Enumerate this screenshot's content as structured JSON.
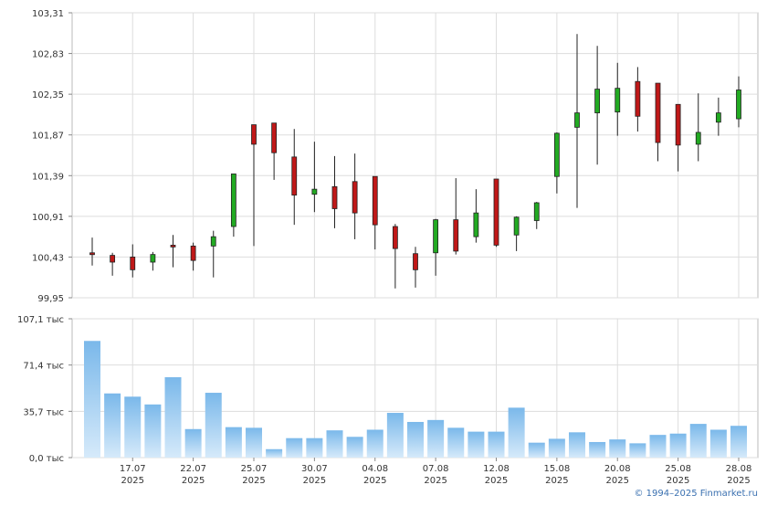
{
  "chart_data": [
    {
      "type": "candlestick",
      "x_tick_labels": [
        {
          "day": "17.07",
          "year": "2025"
        },
        {
          "day": "22.07",
          "year": "2025"
        },
        {
          "day": "25.07",
          "year": "2025"
        },
        {
          "day": "30.07",
          "year": "2025"
        },
        {
          "day": "04.08",
          "year": "2025"
        },
        {
          "day": "07.08",
          "year": "2025"
        },
        {
          "day": "12.08",
          "year": "2025"
        },
        {
          "day": "15.08",
          "year": "2025"
        },
        {
          "day": "20.08",
          "year": "2025"
        },
        {
          "day": "25.08",
          "year": "2025"
        },
        {
          "day": "28.08",
          "year": "2025"
        }
      ],
      "y_ticks": [
        "99,95",
        "100,43",
        "100,91",
        "101,39",
        "101,87",
        "102,35",
        "102,83",
        "103,31"
      ],
      "ylim": [
        99.95,
        103.31
      ],
      "grid": true,
      "candles": [
        {
          "o": 100.48,
          "h": 100.66,
          "l": 100.33,
          "c": 100.46
        },
        {
          "o": 100.45,
          "h": 100.48,
          "l": 100.21,
          "c": 100.37
        },
        {
          "o": 100.43,
          "h": 100.58,
          "l": 100.19,
          "c": 100.28
        },
        {
          "o": 100.37,
          "h": 100.49,
          "l": 100.27,
          "c": 100.46
        },
        {
          "o": 100.57,
          "h": 100.69,
          "l": 100.31,
          "c": 100.55
        },
        {
          "o": 100.56,
          "h": 100.6,
          "l": 100.27,
          "c": 100.39
        },
        {
          "o": 100.56,
          "h": 100.74,
          "l": 100.19,
          "c": 100.67
        },
        {
          "o": 100.79,
          "h": 101.41,
          "l": 100.67,
          "c": 101.41
        },
        {
          "o": 101.99,
          "h": 101.99,
          "l": 100.56,
          "c": 101.76
        },
        {
          "o": 102.01,
          "h": 102.01,
          "l": 101.34,
          "c": 101.66
        },
        {
          "o": 101.61,
          "h": 101.94,
          "l": 100.81,
          "c": 101.16
        },
        {
          "o": 101.17,
          "h": 101.79,
          "l": 100.96,
          "c": 101.23
        },
        {
          "o": 101.26,
          "h": 101.62,
          "l": 100.77,
          "c": 101.0
        },
        {
          "o": 101.32,
          "h": 101.65,
          "l": 100.64,
          "c": 100.95
        },
        {
          "o": 101.38,
          "h": 101.38,
          "l": 100.52,
          "c": 100.81
        },
        {
          "o": 100.79,
          "h": 100.82,
          "l": 100.06,
          "c": 100.53
        },
        {
          "o": 100.47,
          "h": 100.55,
          "l": 100.07,
          "c": 100.28
        },
        {
          "o": 100.48,
          "h": 100.88,
          "l": 100.21,
          "c": 100.87
        },
        {
          "o": 100.87,
          "h": 101.36,
          "l": 100.46,
          "c": 100.5
        },
        {
          "o": 100.67,
          "h": 101.23,
          "l": 100.6,
          "c": 100.95
        },
        {
          "o": 101.35,
          "h": 101.35,
          "l": 100.55,
          "c": 100.57
        },
        {
          "o": 100.69,
          "h": 100.91,
          "l": 100.5,
          "c": 100.9
        },
        {
          "o": 100.86,
          "h": 101.08,
          "l": 100.76,
          "c": 101.07
        },
        {
          "o": 101.38,
          "h": 101.9,
          "l": 101.18,
          "c": 101.89
        },
        {
          "o": 101.96,
          "h": 103.06,
          "l": 101.01,
          "c": 102.13
        },
        {
          "o": 102.13,
          "h": 102.92,
          "l": 101.52,
          "c": 102.41
        },
        {
          "o": 102.14,
          "h": 102.72,
          "l": 101.86,
          "c": 102.42
        },
        {
          "o": 102.5,
          "h": 102.67,
          "l": 101.91,
          "c": 102.09
        },
        {
          "o": 102.48,
          "h": 102.48,
          "l": 101.56,
          "c": 101.78
        },
        {
          "o": 102.23,
          "h": 102.23,
          "l": 101.44,
          "c": 101.75
        },
        {
          "o": 101.76,
          "h": 102.36,
          "l": 101.56,
          "c": 101.9
        },
        {
          "o": 102.02,
          "h": 102.31,
          "l": 101.86,
          "c": 102.13
        },
        {
          "o": 102.06,
          "h": 102.56,
          "l": 101.96,
          "c": 102.4
        }
      ],
      "up_color": "#22aa22",
      "down_color": "#c01818"
    },
    {
      "type": "bar",
      "y_ticks": [
        "0,0 тыс",
        "35,7 тыс",
        "71,4 тыс",
        "107,1 тыс"
      ],
      "ylim": [
        0,
        107.1
      ],
      "unit": "тыс",
      "grid": true,
      "values": [
        90.0,
        49.5,
        47.0,
        41.0,
        62.0,
        22.0,
        50.0,
        23.5,
        23.0,
        6.5,
        15.0,
        15.0,
        21.0,
        16.0,
        21.5,
        34.5,
        27.5,
        29.0,
        23.0,
        20.0,
        20.0,
        38.5,
        11.5,
        14.5,
        19.5,
        12.0,
        14.0,
        11.0,
        17.5,
        18.5,
        26.0,
        21.5,
        24.5
      ],
      "bar_color_top": "#7ab8ea",
      "bar_color_bottom": "#d6eafa"
    }
  ],
  "footer": {
    "copyright": "© 1994–2025 Finmarket.ru"
  }
}
